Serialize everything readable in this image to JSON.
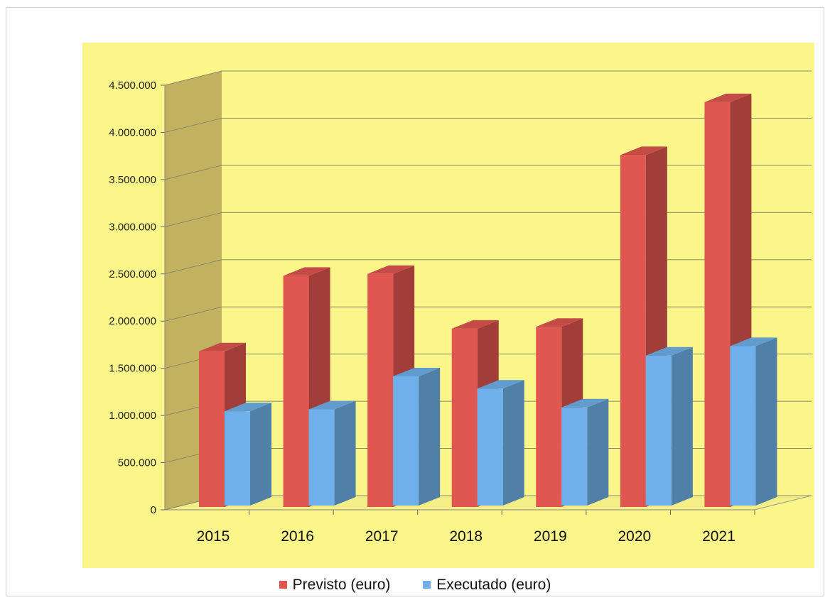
{
  "chart_data": {
    "type": "bar",
    "categories": [
      "2015",
      "2016",
      "2017",
      "2018",
      "2019",
      "2020",
      "2021"
    ],
    "series": [
      {
        "name": "Previsto (euro)",
        "color": "#e05650",
        "values": [
          1680000,
          2480000,
          2500000,
          1920000,
          1940000,
          3760000,
          4320000
        ]
      },
      {
        "name": "Executado (euro)",
        "color": "#6fb0ea",
        "values": [
          1030000,
          1050000,
          1400000,
          1270000,
          1070000,
          1620000,
          1720000
        ]
      }
    ],
    "yticks": [
      "4.500.000",
      "4.000.000",
      "3.500.000",
      "3.000.000",
      "2.500.000",
      "2.000.000",
      "1.500.000",
      "1.000.000",
      "500.000",
      "0"
    ],
    "ylim": [
      0,
      4500000
    ],
    "grid": true,
    "legend_position": "bottom",
    "style": "3d-column",
    "colors": {
      "wall_back": "#fbf58a",
      "wall_side": "#c2b260",
      "plot_area": "#fbf58a"
    }
  }
}
